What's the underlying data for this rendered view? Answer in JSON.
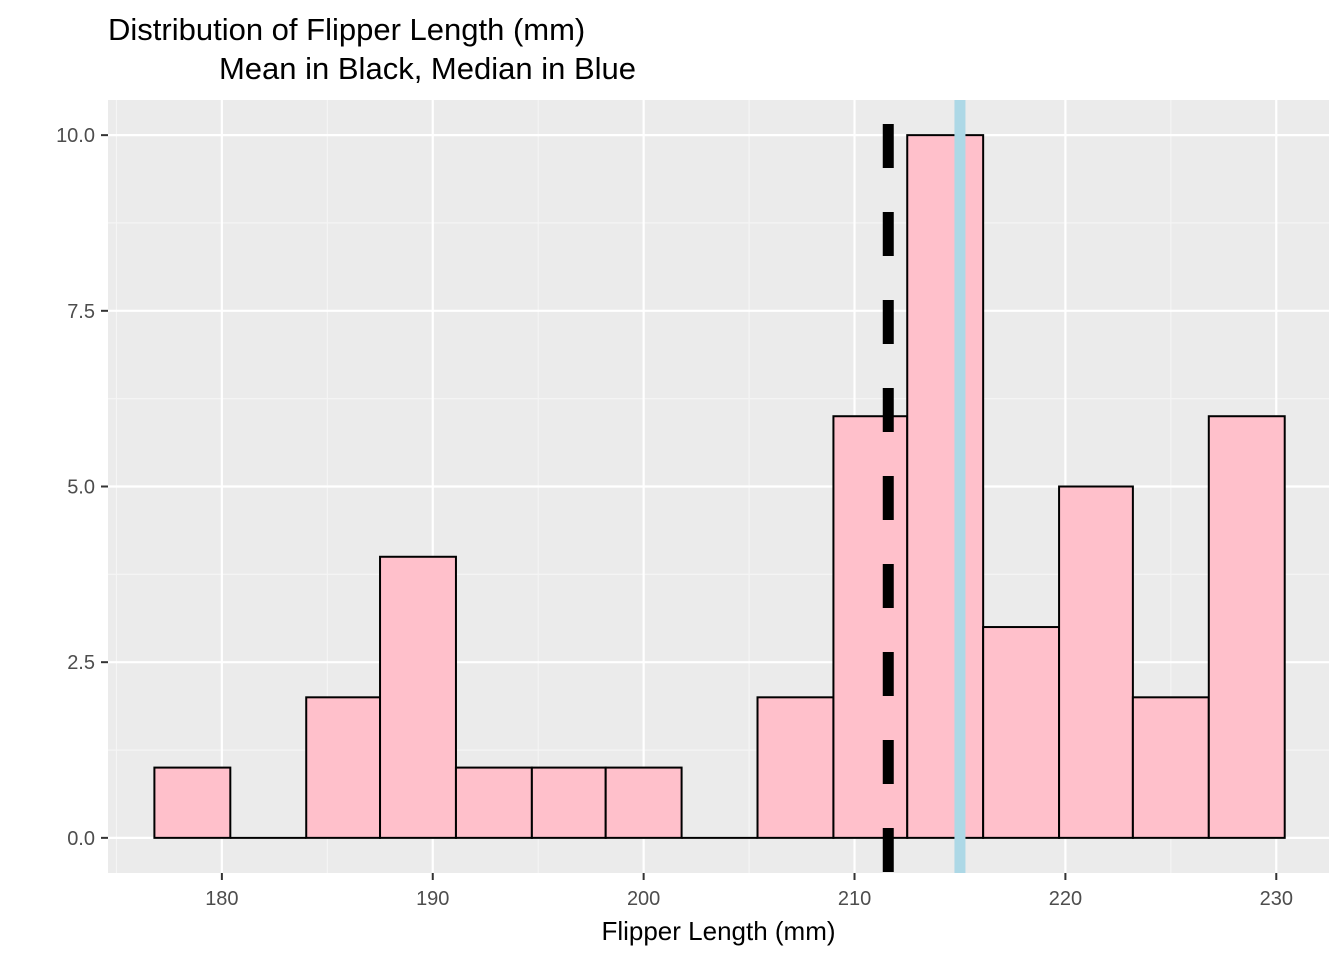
{
  "chart_data": {
    "type": "bar",
    "title": "Distribution of Flipper Length (mm)",
    "subtitle": "Mean in Black, Median in Blue",
    "xlabel": "Flipper Length (mm)",
    "ylabel": "",
    "xlim": [
      174.6,
      232.5
    ],
    "ylim": [
      -0.5,
      10.5
    ],
    "x_ticks": [
      180,
      190,
      200,
      210,
      220,
      230
    ],
    "y_ticks": [
      0.0,
      2.5,
      5.0,
      7.5,
      10.0
    ],
    "x_tick_labels": [
      "180",
      "190",
      "200",
      "210",
      "220",
      "230"
    ],
    "y_tick_labels": [
      "0.0",
      "2.5",
      "5.0",
      "7.5",
      "10.0"
    ],
    "bin_width": 3.57,
    "bins": [
      {
        "start": 176.8,
        "end": 180.4,
        "count": 1
      },
      {
        "start": 180.4,
        "end": 184.0,
        "count": 0
      },
      {
        "start": 184.0,
        "end": 187.5,
        "count": 2
      },
      {
        "start": 187.5,
        "end": 191.1,
        "count": 4
      },
      {
        "start": 191.1,
        "end": 194.7,
        "count": 1
      },
      {
        "start": 194.7,
        "end": 198.2,
        "count": 1
      },
      {
        "start": 198.2,
        "end": 201.8,
        "count": 1
      },
      {
        "start": 201.8,
        "end": 205.4,
        "count": 0
      },
      {
        "start": 205.4,
        "end": 209.0,
        "count": 2
      },
      {
        "start": 209.0,
        "end": 212.5,
        "count": 6
      },
      {
        "start": 212.5,
        "end": 216.1,
        "count": 10
      },
      {
        "start": 216.1,
        "end": 219.7,
        "count": 3
      },
      {
        "start": 219.7,
        "end": 223.2,
        "count": 5
      },
      {
        "start": 223.2,
        "end": 226.8,
        "count": 2
      },
      {
        "start": 226.8,
        "end": 230.4,
        "count": 6
      }
    ],
    "mean": 211.6,
    "median": 215.0,
    "grid": true,
    "legend": "none",
    "colors": {
      "bar_fill": "#ffc0cb",
      "bar_outline": "#000000",
      "mean_line": "#000000",
      "median_line": "#add8e6",
      "panel_background": "#ebebeb",
      "grid_major": "#ffffff",
      "grid_minor": "#f5f5f5"
    }
  }
}
